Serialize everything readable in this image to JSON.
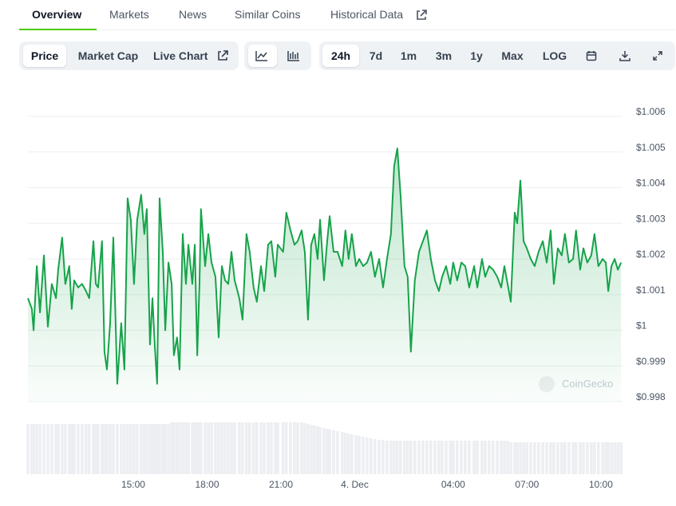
{
  "tabs": [
    "Overview",
    "Markets",
    "News",
    "Similar Coins",
    "Historical Data"
  ],
  "toolbar": {
    "data_types": [
      "Price",
      "Market Cap",
      "Live Chart"
    ],
    "ranges": [
      "24h",
      "7d",
      "1m",
      "3m",
      "1y",
      "Max",
      "LOG"
    ]
  },
  "chart_data": {
    "type": "line",
    "color": "#16a34a",
    "grid": true,
    "watermark": "CoinGecko",
    "xlim": [
      -13.28,
      10.88
    ],
    "ylim": [
      0.998,
      1.006
    ],
    "yticks": [
      {
        "value": 1.006,
        "label": "$1.006"
      },
      {
        "value": 1.005,
        "label": "$1.005"
      },
      {
        "value": 1.004,
        "label": "$1.004"
      },
      {
        "value": 1.003,
        "label": "$1.003"
      },
      {
        "value": 1.002,
        "label": "$1.002"
      },
      {
        "value": 1.001,
        "label": "$1.001"
      },
      {
        "value": 1,
        "label": "$1"
      },
      {
        "value": 0.999,
        "label": "$0.999"
      },
      {
        "value": 0.998,
        "label": "$0.998"
      }
    ],
    "xticks": [
      {
        "value": -9,
        "label": "15:00"
      },
      {
        "value": -6,
        "label": "18:00"
      },
      {
        "value": -3,
        "label": "21:00"
      },
      {
        "value": 0,
        "label": "4. Dec"
      },
      {
        "value": 4,
        "label": "04:00"
      },
      {
        "value": 7,
        "label": "07:00"
      },
      {
        "value": 10,
        "label": "10:00"
      }
    ],
    "x": [
      -13.28,
      -13.12,
      -13.05,
      -12.92,
      -12.79,
      -12.63,
      -12.47,
      -12.31,
      -12.14,
      -12.05,
      -11.89,
      -11.76,
      -11.6,
      -11.5,
      -11.4,
      -11.24,
      -11.08,
      -10.92,
      -10.79,
      -10.62,
      -10.52,
      -10.43,
      -10.27,
      -10.17,
      -10.07,
      -9.94,
      -9.81,
      -9.65,
      -9.49,
      -9.36,
      -9.23,
      -9.1,
      -8.97,
      -8.84,
      -8.68,
      -8.55,
      -8.45,
      -8.32,
      -8.22,
      -8.12,
      -8.03,
      -7.93,
      -7.8,
      -7.7,
      -7.57,
      -7.44,
      -7.35,
      -7.22,
      -7.12,
      -6.99,
      -6.86,
      -6.76,
      -6.6,
      -6.5,
      -6.4,
      -6.31,
      -6.25,
      -6.08,
      -5.95,
      -5.82,
      -5.66,
      -5.53,
      -5.4,
      -5.27,
      -5.14,
      -5.01,
      -4.88,
      -4.69,
      -4.56,
      -4.4,
      -4.27,
      -4.11,
      -3.98,
      -3.81,
      -3.68,
      -3.52,
      -3.39,
      -3.23,
      -3.13,
      -2.91,
      -2.78,
      -2.61,
      -2.45,
      -2.32,
      -2.16,
      -2.03,
      -1.9,
      -1.77,
      -1.64,
      -1.51,
      -1.41,
      -1.25,
      -1.12,
      -1.02,
      -0.86,
      -0.7,
      -0.51,
      -0.38,
      -0.25,
      -0.12,
      0.05,
      0.18,
      0.34,
      0.5,
      0.66,
      0.82,
      0.99,
      1.15,
      1.31,
      1.47,
      1.6,
      1.73,
      1.86,
      2.02,
      2.15,
      2.28,
      2.44,
      2.61,
      2.77,
      2.93,
      3.09,
      3.26,
      3.42,
      3.55,
      3.71,
      3.88,
      4.0,
      4.16,
      4.33,
      4.49,
      4.65,
      4.85,
      4.98,
      5.17,
      5.3,
      5.46,
      5.62,
      5.79,
      5.95,
      6.08,
      6.21,
      6.34,
      6.5,
      6.6,
      6.73,
      6.86,
      6.99,
      7.15,
      7.31,
      7.47,
      7.64,
      7.8,
      7.96,
      8.09,
      8.25,
      8.41,
      8.54,
      8.7,
      8.87,
      8.99,
      9.16,
      9.29,
      9.45,
      9.61,
      9.74,
      9.9,
      10.07,
      10.2,
      10.3,
      10.43,
      10.56,
      10.69,
      10.82
    ],
    "values": [
      1.0009,
      1.0006,
      1.0,
      1.0018,
      1.0005,
      1.0021,
      1.0001,
      1.0013,
      1.0009,
      1.0017,
      1.0026,
      1.0013,
      1.0018,
      1.0006,
      1.0014,
      1.0012,
      1.0013,
      1.0011,
      1.0009,
      1.0025,
      1.0013,
      1.0012,
      1.0025,
      0.9994,
      0.9989,
      1.0002,
      1.0026,
      0.9985,
      1.0002,
      0.9989,
      1.0037,
      1.0031,
      1.0013,
      1.0031,
      1.0038,
      1.0027,
      1.0034,
      0.9996,
      1.0009,
      0.9995,
      0.9985,
      1.0037,
      1.0022,
      1.0,
      1.0019,
      1.0013,
      0.9993,
      0.9998,
      0.9989,
      1.0027,
      1.0013,
      1.0024,
      1.0013,
      1.0024,
      0.9993,
      1.0013,
      1.0034,
      1.0018,
      1.0027,
      1.0019,
      1.0015,
      0.9998,
      1.0018,
      1.0014,
      1.0013,
      1.0022,
      1.0014,
      1.0009,
      1.0003,
      1.0027,
      1.0022,
      1.0012,
      1.0008,
      1.0018,
      1.0011,
      1.0024,
      1.0025,
      1.0015,
      1.0024,
      1.0022,
      1.0033,
      1.0028,
      1.0024,
      1.0025,
      1.0028,
      1.0022,
      1.0003,
      1.0024,
      1.0027,
      1.002,
      1.0031,
      1.0014,
      1.0025,
      1.0032,
      1.0022,
      1.0022,
      1.0018,
      1.0028,
      1.002,
      1.0027,
      1.0018,
      1.002,
      1.0018,
      1.0019,
      1.0022,
      1.0015,
      1.002,
      1.0012,
      1.002,
      1.0027,
      1.0046,
      1.0051,
      1.0038,
      1.0018,
      1.0015,
      0.9994,
      1.0014,
      1.0022,
      1.0025,
      1.0028,
      1.002,
      1.0014,
      1.0011,
      1.0015,
      1.0018,
      1.0013,
      1.0019,
      1.0014,
      1.0019,
      1.0018,
      1.0012,
      1.0018,
      1.0012,
      1.002,
      1.0015,
      1.0018,
      1.0017,
      1.0015,
      1.0012,
      1.0018,
      1.0013,
      1.0008,
      1.0033,
      1.003,
      1.0042,
      1.0025,
      1.0023,
      1.002,
      1.0018,
      1.0022,
      1.0025,
      1.0019,
      1.0028,
      1.0013,
      1.0023,
      1.0021,
      1.0027,
      1.0019,
      1.002,
      1.0028,
      1.0017,
      1.0023,
      1.0019,
      1.0021,
      1.0027,
      1.0018,
      1.002,
      1.0019,
      1.0011,
      1.0018,
      1.002,
      1.0017,
      1.0019
    ],
    "volume_values": [
      63,
      63,
      63,
      63,
      63,
      63,
      63,
      63,
      63,
      63,
      63,
      63,
      63,
      63,
      63,
      63,
      63,
      63,
      63,
      63,
      63,
      63,
      63,
      63,
      63,
      63,
      63,
      63,
      63,
      63,
      63,
      63,
      63,
      63,
      63,
      63,
      63,
      63,
      63,
      63,
      63,
      63,
      63,
      63,
      63,
      65,
      65,
      65,
      65,
      65,
      65,
      65,
      65,
      65,
      65,
      65,
      65,
      65,
      65,
      65,
      65,
      65,
      65,
      65,
      65,
      65,
      65,
      65,
      65,
      65,
      65,
      65,
      65,
      65,
      65,
      65,
      65,
      65,
      65,
      65,
      65,
      65,
      65,
      65,
      65,
      64,
      63,
      62,
      61,
      60,
      59,
      58,
      57,
      56,
      55,
      54,
      53,
      52,
      51,
      50,
      49,
      48,
      47,
      46,
      45,
      44,
      43,
      43,
      42,
      42,
      42,
      42,
      42,
      42,
      42,
      42,
      42,
      42,
      42,
      42,
      42,
      42,
      42,
      42,
      42,
      42,
      42,
      42,
      42,
      42,
      42,
      42,
      42,
      42,
      42,
      42,
      42,
      42,
      42,
      42,
      42,
      40,
      40,
      40,
      40,
      40,
      40,
      40,
      40,
      40,
      40,
      40,
      40,
      40,
      40,
      40,
      40,
      40,
      40,
      40,
      40,
      40,
      40,
      40,
      40,
      40,
      40,
      40,
      40,
      40,
      40,
      40,
      40
    ]
  }
}
